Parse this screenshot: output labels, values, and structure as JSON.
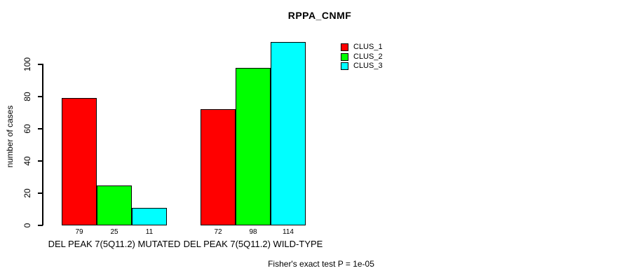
{
  "title": "RPPA_CNMF",
  "footer_note": "Fisher's exact test P = 1e-05",
  "chart_data": {
    "type": "bar",
    "title": "RPPA_CNMF",
    "xlabel": "",
    "ylabel": "number of cases",
    "categories": [
      "DEL PEAK 7(5Q11.2) MUTATED",
      "DEL PEAK 7(5Q11.2) WILD-TYPE"
    ],
    "series": [
      {
        "name": "CLUS_1",
        "color": "#FF0000",
        "values": [
          79,
          72
        ]
      },
      {
        "name": "CLUS_2",
        "color": "#00FF00",
        "values": [
          25,
          98
        ]
      },
      {
        "name": "CLUS_3",
        "color": "#00FFFF",
        "values": [
          11,
          114
        ]
      }
    ],
    "bar_value_labels": [
      [
        79,
        25,
        11
      ],
      [
        72,
        98,
        114
      ]
    ],
    "y_ticks": [
      0,
      20,
      40,
      60,
      80,
      100
    ],
    "ylim": [
      0,
      115
    ],
    "grid": false,
    "legend_position": "top-right",
    "annotation": "Fisher's exact test P = 1e-05"
  }
}
